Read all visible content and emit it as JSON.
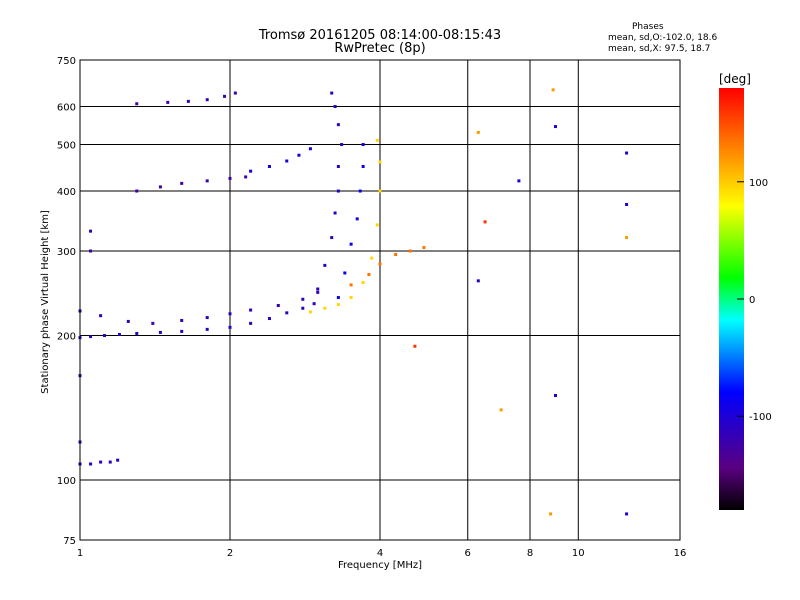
{
  "chart_data": {
    "type": "scatter",
    "title": "Tromsø 20161205 08:14:00-08:15:43",
    "subtitle": "RwPretec (8p)",
    "xlabel": "Frequency [MHz]",
    "ylabel": "Stationary phase Virtual Height [km]",
    "x_scale": "log",
    "y_scale": "log",
    "xlim": [
      1,
      16
    ],
    "ylim": [
      75,
      750
    ],
    "x_ticks": [
      "1",
      "2",
      "4",
      "6",
      "8",
      "10",
      "16"
    ],
    "y_ticks": [
      "75",
      "100",
      "200",
      "300",
      "400",
      "500",
      "600",
      "750"
    ],
    "colorbar": {
      "label": "[deg]",
      "range": [
        -180,
        180
      ],
      "ticks": [
        "100",
        "0",
        "-100"
      ],
      "colors": [
        "#000000",
        "#5a0080",
        "#0000ff",
        "#00ffff",
        "#00ff00",
        "#ffff00",
        "#ff8000",
        "#ff0000"
      ]
    },
    "phase_stats": {
      "heading": "Phases",
      "line_o": "mean, sd,O:-102.0, 18.6",
      "line_x": "mean, sd,X:  97.5, 18.7"
    },
    "series": [
      {
        "name": "",
        "color_phase": -110,
        "x": [
          1.0,
          1.05,
          1.12,
          1.2,
          1.3,
          1.45,
          1.6,
          1.8,
          2.0,
          2.2,
          2.4,
          2.6,
          2.8,
          2.95
        ],
        "y": [
          198,
          199,
          200,
          201,
          202,
          203,
          204,
          206,
          208,
          212,
          217,
          223,
          228,
          233
        ]
      },
      {
        "name": "",
        "color_phase": -115,
        "x": [
          1.0,
          1.1,
          1.25,
          1.4,
          1.6,
          1.8,
          2.0,
          2.2,
          2.5,
          2.8,
          3.0
        ],
        "y": [
          225,
          220,
          214,
          212,
          215,
          218,
          222,
          226,
          231,
          238,
          246
        ]
      },
      {
        "name": "",
        "color_phase": -110,
        "x": [
          3.0,
          3.1,
          3.2,
          3.25,
          3.3,
          3.3,
          3.35,
          3.3,
          3.25,
          3.2
        ],
        "y": [
          250,
          280,
          320,
          360,
          400,
          450,
          500,
          550,
          600,
          640
        ]
      },
      {
        "name": "",
        "color_phase": -90,
        "x": [
          3.3,
          3.4,
          3.5,
          3.6,
          3.65,
          3.7,
          3.7
        ],
        "y": [
          240,
          270,
          310,
          350,
          400,
          450,
          500
        ]
      },
      {
        "name": "",
        "color_phase": 95,
        "x": [
          2.9,
          3.1,
          3.3,
          3.5,
          3.7,
          3.85,
          3.95,
          4.0,
          4.0,
          3.95
        ],
        "y": [
          224,
          228,
          232,
          240,
          258,
          290,
          340,
          400,
          460,
          510
        ]
      },
      {
        "name": "",
        "color_phase": 135,
        "x": [
          3.5,
          3.8,
          4.0,
          4.3,
          4.6,
          4.9
        ],
        "y": [
          255,
          268,
          282,
          295,
          300,
          305
        ]
      },
      {
        "name": "",
        "color_phase": -125,
        "x": [
          1.3,
          1.45,
          1.6,
          1.8,
          2.0,
          2.15
        ],
        "y": [
          400,
          408,
          415,
          420,
          425,
          428
        ]
      },
      {
        "name": "",
        "color_phase": -95,
        "x": [
          2.2,
          2.4,
          2.6,
          2.75,
          2.9
        ],
        "y": [
          440,
          450,
          462,
          475,
          490
        ]
      },
      {
        "name": "",
        "color_phase": -120,
        "x": [
          1.3,
          1.5,
          1.65,
          1.8,
          1.95,
          2.05
        ],
        "y": [
          608,
          612,
          615,
          620,
          630,
          640
        ]
      },
      {
        "name": "",
        "color_phase": -110,
        "x": [
          1.0,
          1.05,
          1.1,
          1.15,
          1.19
        ],
        "y": [
          108,
          108,
          109,
          109,
          110
        ]
      },
      {
        "name": "",
        "color_phase": -120,
        "x": [
          1.0,
          1.0,
          1.05,
          1.05
        ],
        "y": [
          165,
          120,
          300,
          330
        ]
      },
      {
        "name": "",
        "color_phase": 120,
        "x": [
          6.3,
          7.0,
          8.8,
          8.9,
          12.5
        ],
        "y": [
          530,
          140,
          85,
          650,
          320
        ]
      },
      {
        "name": "",
        "color_phase": -100,
        "x": [
          6.3,
          7.6,
          9.0,
          9.0,
          12.5,
          12.5,
          12.5
        ],
        "y": [
          260,
          420,
          545,
          150,
          480,
          375,
          85
        ]
      },
      {
        "name": "",
        "color_phase": 160,
        "x": [
          4.7,
          6.5
        ],
        "y": [
          190,
          345
        ]
      }
    ]
  }
}
